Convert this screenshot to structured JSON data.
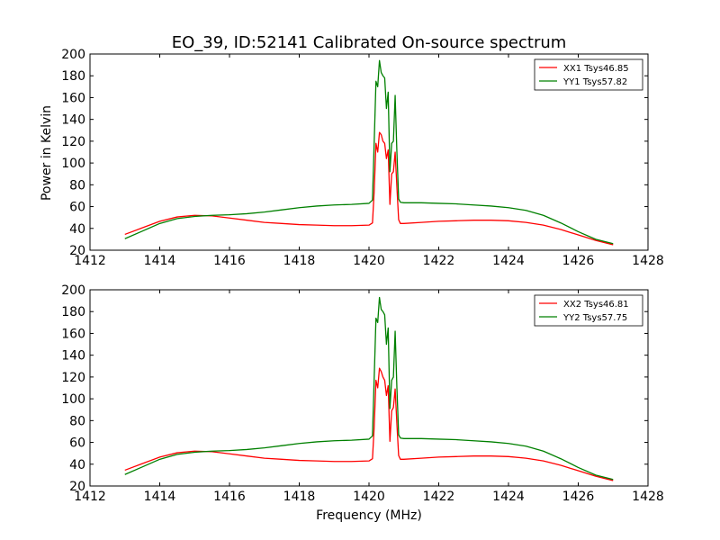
{
  "figure": {
    "title": "EO_39, ID:52141 Calibrated On-source spectrum",
    "xlabel": "Frequency (MHz)",
    "ylabel": "Power in Kelvin"
  },
  "colors": {
    "series_a": "#ff0000",
    "series_b": "#008000",
    "axes": "#000000",
    "background": "#ffffff"
  },
  "chart_data": [
    {
      "type": "line",
      "xlabel": "",
      "ylabel": "Power in Kelvin",
      "xlim": [
        1412,
        1428
      ],
      "ylim": [
        20,
        200
      ],
      "xticks": [
        1412,
        1414,
        1416,
        1418,
        1420,
        1422,
        1424,
        1426,
        1428
      ],
      "yticks": [
        20,
        40,
        60,
        80,
        100,
        120,
        140,
        160,
        180,
        200
      ],
      "legend_position": "top-right",
      "grid": false,
      "series": [
        {
          "name": "XX1 Tsys46.85",
          "color": "#ff0000",
          "x": [
            1413.0,
            1413.5,
            1414.0,
            1414.5,
            1415.0,
            1415.5,
            1416.0,
            1416.5,
            1417.0,
            1417.5,
            1418.0,
            1418.5,
            1419.0,
            1419.5,
            1420.0,
            1420.1,
            1420.15,
            1420.2,
            1420.25,
            1420.3,
            1420.35,
            1420.4,
            1420.45,
            1420.5,
            1420.55,
            1420.6,
            1420.65,
            1420.7,
            1420.75,
            1420.8,
            1420.85,
            1420.9,
            1421.0,
            1421.5,
            1422.0,
            1422.5,
            1423.0,
            1423.5,
            1424.0,
            1424.5,
            1425.0,
            1425.5,
            1426.0,
            1426.5,
            1427.0
          ],
          "y": [
            34.5,
            40.5,
            46.5,
            50.5,
            52.0,
            51.5,
            49.5,
            47.5,
            45.5,
            44.5,
            43.5,
            43.0,
            42.5,
            42.5,
            43.0,
            45.0,
            75.0,
            118.0,
            110.0,
            128.0,
            126.0,
            120.0,
            118.0,
            104.0,
            112.0,
            62.0,
            90.0,
            92.0,
            110.0,
            78.0,
            48.0,
            44.5,
            44.5,
            45.5,
            46.5,
            47.0,
            47.5,
            47.5,
            47.0,
            45.5,
            43.0,
            39.0,
            34.0,
            29.0,
            25.0
          ]
        },
        {
          "name": "YY1 Tsys57.82",
          "color": "#008000",
          "x": [
            1413.0,
            1413.5,
            1414.0,
            1414.5,
            1415.0,
            1415.5,
            1416.0,
            1416.5,
            1417.0,
            1417.5,
            1418.0,
            1418.5,
            1419.0,
            1419.5,
            1420.0,
            1420.1,
            1420.15,
            1420.2,
            1420.25,
            1420.3,
            1420.35,
            1420.4,
            1420.45,
            1420.5,
            1420.55,
            1420.6,
            1420.65,
            1420.7,
            1420.75,
            1420.8,
            1420.85,
            1420.9,
            1421.0,
            1421.5,
            1422.0,
            1422.5,
            1423.0,
            1423.5,
            1424.0,
            1424.5,
            1425.0,
            1425.5,
            1426.0,
            1426.5,
            1427.0
          ],
          "y": [
            30.5,
            37.5,
            44.5,
            49.0,
            51.0,
            52.0,
            52.5,
            53.5,
            55.0,
            57.0,
            59.0,
            60.5,
            61.5,
            62.0,
            63.0,
            66.0,
            120.0,
            175.0,
            170.0,
            194.0,
            183.0,
            180.0,
            178.0,
            150.0,
            165.0,
            92.0,
            118.0,
            120.0,
            162.0,
            110.0,
            67.0,
            64.0,
            63.5,
            63.5,
            63.0,
            62.5,
            61.5,
            60.5,
            59.0,
            56.5,
            52.0,
            45.0,
            37.0,
            30.0,
            26.0
          ]
        }
      ]
    },
    {
      "type": "line",
      "xlabel": "Frequency (MHz)",
      "ylabel": "",
      "xlim": [
        1412,
        1428
      ],
      "ylim": [
        20,
        200
      ],
      "xticks": [
        1412,
        1414,
        1416,
        1418,
        1420,
        1422,
        1424,
        1426,
        1428
      ],
      "yticks": [
        20,
        40,
        60,
        80,
        100,
        120,
        140,
        160,
        180,
        200
      ],
      "legend_position": "top-right",
      "grid": false,
      "series": [
        {
          "name": "XX2 Tsys46.81",
          "color": "#ff0000",
          "x": [
            1413.0,
            1413.5,
            1414.0,
            1414.5,
            1415.0,
            1415.5,
            1416.0,
            1416.5,
            1417.0,
            1417.5,
            1418.0,
            1418.5,
            1419.0,
            1419.5,
            1420.0,
            1420.1,
            1420.15,
            1420.2,
            1420.25,
            1420.3,
            1420.35,
            1420.4,
            1420.45,
            1420.5,
            1420.55,
            1420.6,
            1420.65,
            1420.7,
            1420.75,
            1420.8,
            1420.85,
            1420.9,
            1421.0,
            1421.5,
            1422.0,
            1422.5,
            1423.0,
            1423.5,
            1424.0,
            1424.5,
            1425.0,
            1425.5,
            1426.0,
            1426.5,
            1427.0
          ],
          "y": [
            34.5,
            40.5,
            46.5,
            50.5,
            52.0,
            51.5,
            49.5,
            47.5,
            45.5,
            44.5,
            43.5,
            43.0,
            42.5,
            42.5,
            43.0,
            45.0,
            75.0,
            117.0,
            110.0,
            128.0,
            125.0,
            120.0,
            117.0,
            103.0,
            112.0,
            61.0,
            89.0,
            92.0,
            109.0,
            77.0,
            48.0,
            44.5,
            44.5,
            45.5,
            46.5,
            47.0,
            47.5,
            47.5,
            47.0,
            45.5,
            43.0,
            39.0,
            34.0,
            29.0,
            25.0
          ]
        },
        {
          "name": "YY2 Tsys57.75",
          "color": "#008000",
          "x": [
            1413.0,
            1413.5,
            1414.0,
            1414.5,
            1415.0,
            1415.5,
            1416.0,
            1416.5,
            1417.0,
            1417.5,
            1418.0,
            1418.5,
            1419.0,
            1419.5,
            1420.0,
            1420.1,
            1420.15,
            1420.2,
            1420.25,
            1420.3,
            1420.35,
            1420.4,
            1420.45,
            1420.5,
            1420.55,
            1420.6,
            1420.65,
            1420.7,
            1420.75,
            1420.8,
            1420.85,
            1420.9,
            1421.0,
            1421.5,
            1422.0,
            1422.5,
            1423.0,
            1423.5,
            1424.0,
            1424.5,
            1425.0,
            1425.5,
            1426.0,
            1426.5,
            1427.0
          ],
          "y": [
            30.5,
            37.5,
            44.5,
            49.0,
            51.0,
            52.0,
            52.5,
            53.5,
            55.0,
            57.0,
            59.0,
            60.5,
            61.5,
            62.0,
            63.0,
            66.0,
            120.0,
            174.0,
            170.0,
            193.0,
            182.0,
            180.0,
            177.0,
            150.0,
            165.0,
            91.0,
            117.0,
            120.0,
            162.0,
            110.0,
            67.0,
            64.0,
            63.5,
            63.5,
            63.0,
            62.5,
            61.5,
            60.5,
            59.0,
            56.5,
            52.0,
            45.0,
            37.0,
            30.0,
            26.0
          ]
        }
      ]
    }
  ]
}
